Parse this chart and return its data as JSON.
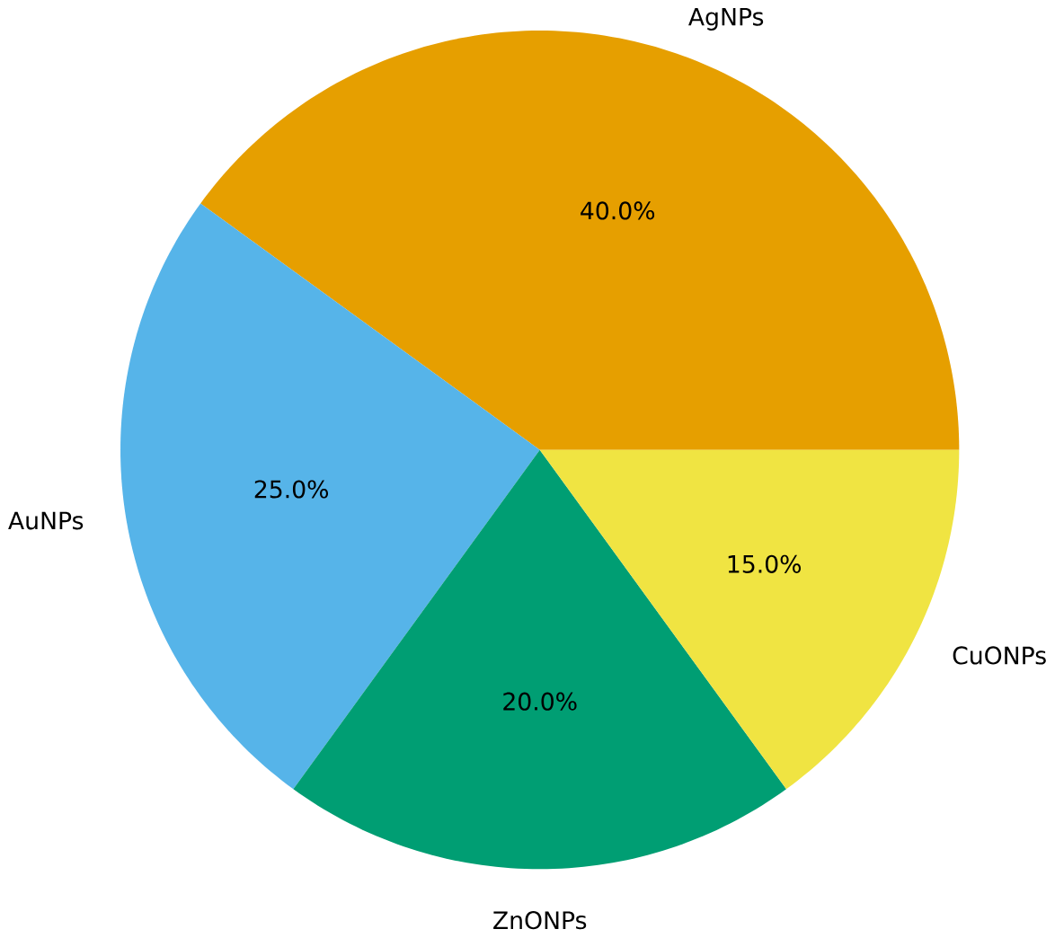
{
  "chart_data": {
    "type": "pie",
    "categories": [
      "AgNPs",
      "AuNPs",
      "ZnONPs",
      "CuONPs"
    ],
    "values": [
      40,
      25,
      20,
      15
    ],
    "colors": [
      "#e69f00",
      "#56b4e9",
      "#009e73",
      "#f0e442"
    ],
    "value_labels": [
      "40.0%",
      "25.0%",
      "20.0%",
      "15.0%"
    ]
  }
}
